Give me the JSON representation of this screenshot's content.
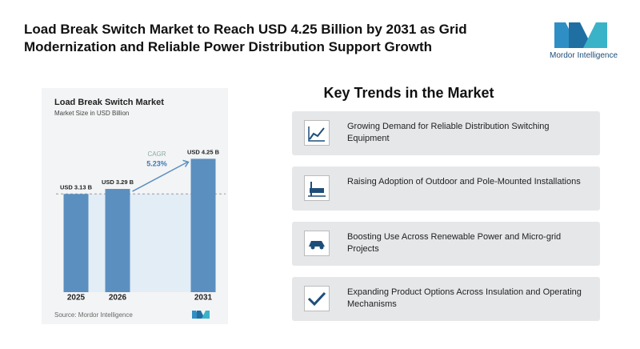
{
  "header": {
    "title": "Load Break Switch Market to Reach USD 4.25 Billion by 2031 as Grid Modernization and Reliable Power Distribution Support Growth",
    "logo": "Mordor Intelligence"
  },
  "chart_data": {
    "type": "bar",
    "title": "Load Break Switch Market",
    "subtitle": "Market Size in USD Billion",
    "categories": [
      "2025",
      "2026",
      "2031"
    ],
    "values": [
      3.13,
      3.29,
      4.25
    ],
    "value_labels": [
      "USD 3.13 B",
      "USD 3.29 B",
      "USD 4.25 B"
    ],
    "color": "#5b8fc0",
    "cagr": {
      "label": "CAGR",
      "value": "5.23%"
    },
    "source": "Source: Mordor Intelligence"
  },
  "trends": {
    "title": "Key Trends in the Market",
    "items": [
      "Growing Demand for Reliable Distribution Switching Equipment",
      "Raising Adoption of Outdoor and Pole-Mounted Installations",
      "Boosting Use Across Renewable Power and Micro-grid Projects",
      "Expanding Product Options Across Insulation and Operating Mechanisms"
    ]
  }
}
